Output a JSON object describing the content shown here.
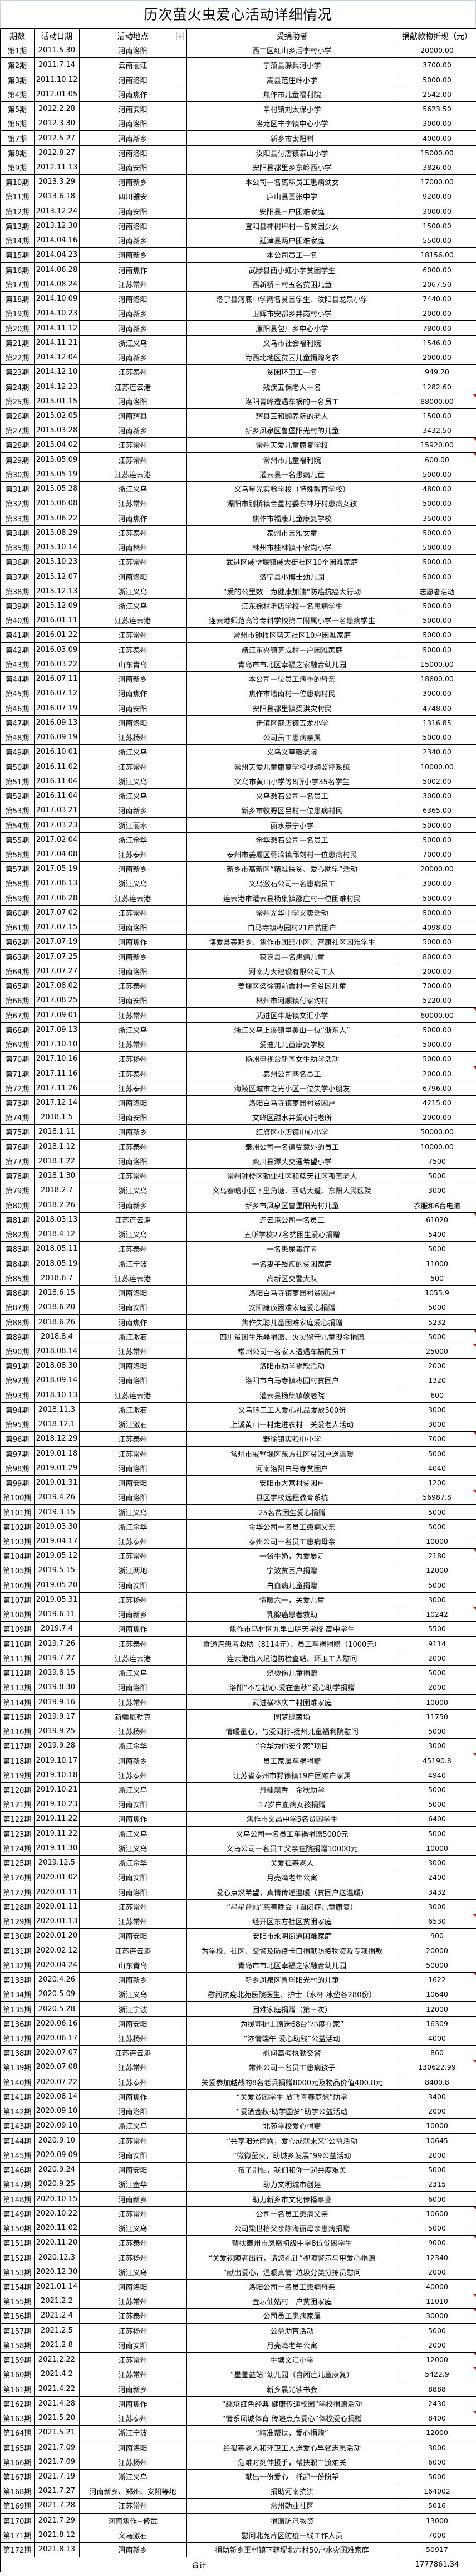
{
  "title": "历次萤火虫爱心活动详细情况",
  "columns": [
    "期数",
    "活动日期",
    "活动地点",
    "受捐助者",
    "捐献款物折现（元）"
  ],
  "filter_icon": "dropdown-filter-icon",
  "colors": {
    "border": "#000000",
    "filter_arrow": "#1fa55a",
    "comment_marker": "#e00000"
  },
  "rows": [
    [
      "第1期",
      "2011.5.30",
      "河南洛阳",
      "西工区红山乡后李村小学",
      "20000.00"
    ],
    [
      "第2期",
      "2011.7.14",
      "云南丽江",
      "宁蒗县躲兵河小学",
      "3700.00"
    ],
    [
      "第3期",
      "2011.10.12",
      "河南洛阳",
      "嵩县范庄岭小学",
      "5000.00"
    ],
    [
      "第4期",
      "2012.01.05",
      "河南焦作",
      "焦作市儿童福利院",
      "2542.00"
    ],
    [
      "第5期",
      "2012.2.28",
      "河南安阳",
      "辛村镇刘太保小学",
      "5623.50"
    ],
    [
      "第6期",
      "2012.3.30",
      "河南洛阳",
      "洛龙区丰李镇中心小学",
      "3000.00"
    ],
    [
      "第7期",
      "2012.5.27",
      "河南新乡",
      "新乡市太阳村",
      "4000.00"
    ],
    [
      "第8期",
      "2012.8.27",
      "河南洛阳",
      "汝阳县付店镇泰山小学",
      "15000.00"
    ],
    [
      "第9期",
      "2012.11.13",
      "河南安阳",
      "安阳县都里乡东岭西小学",
      "3826.00"
    ],
    [
      "第10期",
      "2013.3.29",
      "河南新乡",
      "本公司一名离职员工患病幼女",
      "17000.00"
    ],
    [
      "第11期",
      "2013.6.18",
      "四川雅安",
      "庐山县国张中学",
      "9200.00"
    ],
    [
      "第12期",
      "2013.12.24",
      "河南安阳",
      "安阳县三户困难家庭",
      "3000.00"
    ],
    [
      "第13期",
      "2013.12.30",
      "河南洛阳",
      "宜阳县柿树坪村一名贫困少女",
      "1500.00"
    ],
    [
      "第14期",
      "2014.04.16",
      "河南新乡",
      "延津县两户困难家庭",
      "5500.00"
    ],
    [
      "第15期",
      "2014.04.23",
      "河南新乡",
      "本公司员工一名",
      "18156.00"
    ],
    [
      "第16期",
      "2014.06.28",
      "河南焦作",
      "武陟县西小虹小学贫困学生",
      "6000.00"
    ],
    [
      "第17期",
      "2014.08.24",
      "江苏常州",
      "西新桥三村五名贫困儿童",
      "2067.50"
    ],
    [
      "第18期",
      "2014.10.09",
      "河南洛阳",
      "洛宁县河底中学两名贫困学生、汝阳县龙泉小学",
      "7440.00"
    ],
    [
      "第19期",
      "2014.10.23",
      "河南新乡",
      "卫辉市安都乡井岗村小学",
      "2000.00"
    ],
    [
      "第20期",
      "2014.11.12",
      "河南新乡",
      "原阳县包厂乡中心小学",
      "7800.00"
    ],
    [
      "第21期",
      "2014.11.21",
      "浙江义乌",
      "义乌市社会福利院",
      "1546.00"
    ],
    [
      "第22期",
      "2014.12.04",
      "河南新乡",
      "为西北地区贫困儿童捐赠冬衣",
      "2000.00"
    ],
    [
      "第23期",
      "2014.12.10",
      "江苏泰州",
      "贫困环卫工一名",
      "949.20"
    ],
    [
      "第24期",
      "2014.12.23",
      "江苏连云港",
      "残疾五保老人一名",
      "1282.60"
    ],
    [
      "第25期",
      "2015.01.15",
      "河南洛阳",
      "洛阳青峰遭遇车祸的一名员工",
      "88000.00"
    ],
    [
      "第26期",
      "2015.02.05",
      "河南辉县",
      "辉县三和颐养院的老人",
      "1500.00"
    ],
    [
      "第27期",
      "2015.03.28",
      "河南新乡",
      "新乡凤泉区鲁堡阳光村的儿童",
      "3432.50"
    ],
    [
      "第28期",
      "2015.04.02",
      "江苏常州",
      "常州天爱儿童康复学校",
      "15920.00"
    ],
    [
      "第29期",
      "2015.05.09",
      "江苏常州",
      "常州市儿童福利院",
      "600.00"
    ],
    [
      "第30期",
      "2015.05.19",
      "江苏连云港",
      "灌云县一名患病儿童",
      "5000.00"
    ],
    [
      "第31期",
      "2015.05.28",
      "浙江义乌",
      "义乌星光实验学校（特殊教育学校）",
      "4800.00"
    ],
    [
      "第32期",
      "2015.06.08",
      "江苏常州",
      "溧阳市别桥镇合星村委东神圩村患病女孩",
      "5000.00"
    ],
    [
      "第33期",
      "2015.06.22",
      "河南焦作",
      "焦作市福康儿童康复学校",
      "3500.00"
    ],
    [
      "第34期",
      "2015.08.29",
      "江苏泰州",
      "泰州市困难女童",
      "5000.00"
    ],
    [
      "第35期",
      "2015.10.14",
      "河南林州",
      "林州市桂林镇干家岗小学",
      "5000.00"
    ],
    [
      "第36期",
      "2015.10.23",
      "江苏常州",
      "武进区戚墅堰镇戚大街社区10个困难家庭",
      "5000.00"
    ],
    [
      "第37期",
      "2015.12.07",
      "河南洛阳",
      "洛宁县小博士幼儿园",
      "5000.00"
    ],
    [
      "第38期",
      "2015.12.13",
      "浙江义乌",
      "“爱的公里数　为健康加油”防癌抗癌大行动",
      "志愿者活动"
    ],
    [
      "第39期",
      "2015.12.09",
      "浙江义乌",
      "江东徐村毛店学校一名患病学生",
      "5000.00"
    ],
    [
      "第40期",
      "2016.01.11",
      "江苏连云港",
      "连云港师范高等专科学校第二附属小学一名患病学生",
      "5000.00"
    ],
    [
      "第41期",
      "2016.01.22",
      "江苏常州",
      "常州市钟楼区蓝天社区10户困难家庭",
      "5000.00"
    ],
    [
      "第42期",
      "2016.03.09",
      "江苏泰州",
      "靖江东兴镇克成村一户困难家庭",
      "5000.00"
    ],
    [
      "第43期",
      "2016.03.22",
      "山东青岛",
      "青岛市市北区幸福之家融合幼儿园",
      "15000.00"
    ],
    [
      "第44期",
      "2016.07.11",
      "河南新乡",
      "本公司一位员工病重的母亲",
      "18600.00"
    ],
    [
      "第45期",
      "2016.07.12",
      "河南焦作",
      "焦作市墙南村一位患病村民",
      "3000.00"
    ],
    [
      "第46期",
      "2016.07.19",
      "河南安阳",
      "安阳县都里镇受洪灾村民",
      "4748.00"
    ],
    [
      "第47期",
      "2016.09.13",
      "河南洛阳",
      "伊滨区寇店镇五龙小学",
      "1316.85"
    ],
    [
      "第48期",
      "2016.09.19",
      "江苏扬州",
      "公司员工患病亲属",
      "5000.00"
    ],
    [
      "第49期",
      "2016.10.01",
      "浙江义乌",
      "义乌义亭敬老院",
      "2340.00"
    ],
    [
      "第50期",
      "2016.11.02",
      "江苏常州",
      "常州天爱儿童康复学校视频监控系统",
      "10000.00"
    ],
    [
      "第51期",
      "2016.11.04",
      "浙江义乌",
      "义乌市黄山小学等8所小学35名学生",
      "5002.00"
    ],
    [
      "第52期",
      "2016.11.04",
      "浙江义乌",
      "义乌激石公司一名员工",
      "3000.00"
    ],
    [
      "第53期",
      "2017.03.21",
      "河南新乡",
      "新乡市牧野区吕村一位患病村民",
      "6365.00"
    ],
    [
      "第54期",
      "2017.03.23",
      "浙江丽水",
      "丽水景宁小学",
      "5000.00"
    ],
    [
      "第55期",
      "2017.02.04",
      "浙江金华",
      "金华激石公司一名员工",
      "5000.00"
    ],
    [
      "第56期",
      "2017.04.08",
      "江苏泰州",
      "泰州市姜堰区蒋垛镇邱刘村一位患病村民",
      "7000.00"
    ],
    [
      "第57期",
      "2017.05.19",
      "河南新乡",
      "新乡市高新区“精准扶贫、爱心助学”活动",
      "20000.00"
    ],
    [
      "第58期",
      "2017.06.13",
      "浙江义乌",
      "义乌激石公司一名患病员工",
      "3000.00"
    ],
    [
      "第59期",
      "2017.06.28",
      "江苏连云港",
      "连云港市灌云县杨集镇邵庄村一位困难村民",
      "5000.00"
    ],
    [
      "第60期",
      "2017.07.02",
      "江苏常州",
      "常州光华中学义卖活动",
      "5000.00"
    ],
    [
      "第61期",
      "2017.07.15",
      "河南洛阳",
      "白马寺镇枣园村21户贫困户",
      "4098.00"
    ],
    [
      "第62期",
      "2017.07.19",
      "河南焦作",
      "博爱县寨豁乡、焦作市团结小区、富康社区困难学生",
      "5000.00"
    ],
    [
      "第63期",
      "2017.07.25",
      "河南新乡",
      "获嘉县一名患病儿童",
      "8000.00"
    ],
    [
      "第64期",
      "2017.07.27",
      "河南洛阳",
      "河南力大建设有限公司工人",
      "2000.00"
    ],
    [
      "第65期",
      "2017.08.02",
      "江苏泰州",
      "姜堰区梁徐镇前舍村一名贫困儿童",
      "7000.00"
    ],
    [
      "第66期",
      "2017.08.25",
      "河南安阳",
      "林州市河顺镇付家沟村",
      "5220.00"
    ],
    [
      "第67期",
      "2017.09.01",
      "江苏常州",
      "武进区牛塘镇文汇小学",
      "60000.00"
    ],
    [
      "第68期",
      "2017.09.13",
      "浙江义乌",
      "浙江义乌上溪镇里美山一位“浙东人”",
      "5000.00"
    ],
    [
      "第69期",
      "2017.10.10",
      "江苏常州",
      "爱迪儿儿童康复学校",
      "5000.00"
    ],
    [
      "第70期",
      "2017.10.16",
      "江苏扬州",
      "扬州电视台新闻女生助学活动",
      "5000.00"
    ],
    [
      "第71期",
      "2017.11.16",
      "江苏泰州",
      "泰州公司两名员工",
      "2000.00"
    ],
    [
      "第72期",
      "2017.11.26",
      "江苏泰州",
      "海陵区城市之光小区一位失学小朋友",
      "6796.00"
    ],
    [
      "第73期",
      "2017.12.14",
      "河南洛阳",
      "洛阳白马寺镇枣园村贫困户",
      "4215.00"
    ],
    [
      "第74期",
      "2018.1.5",
      "河南安阳",
      "文峰区甜水井爱心托老所",
      "2000.00"
    ],
    [
      "第75期",
      "2018.1.11",
      "河南新乡",
      "红旗区小店镇中心小学",
      "50000.00"
    ],
    [
      "第76期",
      "2018.1.12",
      "江苏泰州",
      "泰州公司一名遭受意外的员工",
      "10000.00"
    ],
    [
      "第77期",
      "2018.1.22",
      "河南洛阳",
      "栾川县潭头交通希望小学",
      "7500"
    ],
    [
      "第78期",
      "2018.1.30",
      "江苏常州",
      "常州钟楼区勤业社区和蓝天社区孤苦老人",
      "5000"
    ],
    [
      "第79期",
      "2018.2.7",
      "浙江义乌",
      "义乌春晗小区下里角塘、西站大道、东阳人民医院",
      "3000"
    ],
    [
      "第80期",
      "2018.2.26",
      "河南新乡",
      "新乡市凤泉区鲁堡阳光村儿童",
      "衣服和6台电脑"
    ],
    [
      "第81期",
      "2018.03.13",
      "江苏连云港",
      "连云港公司一名员工",
      "61020"
    ],
    [
      "第82期",
      "2018.4.12",
      "浙江义乌",
      "五所学校27名贫困生爱心捐赠",
      "5400"
    ],
    [
      "第83期",
      "2018.05.11",
      "江苏泰州",
      "一名患尿毒症者",
      "5000"
    ],
    [
      "第84期",
      "2018.05.19",
      "浙江宁波",
      "一名妻子残疾的贫困家庭",
      "11000"
    ],
    [
      "第85期",
      "2018.6.7",
      "江苏连云港",
      "高新区交警大队",
      "500"
    ],
    [
      "第86期",
      "2018.6.15",
      "河南洛阳",
      "洛阳白马寺镇枣园村贫困户",
      "1055.9"
    ],
    [
      "第87期",
      "2018.6.20",
      "河南安阳",
      "安阳瘫痪困难家庭爱心捐赠",
      "5000"
    ],
    [
      "第88期",
      "2018.6.26",
      "河南焦作",
      "焦作失聪儿童困难家庭爱心捐赠",
      "5232"
    ],
    [
      "第89期",
      "2018.8.4",
      "浙江激石",
      "四川贫困生乐器捐赠、火灾留守儿童现金捐赠",
      "5000"
    ],
    [
      "第90期",
      "2018.08.14",
      "江苏常州",
      "常州公司一名家人遭遇车祸的员工",
      "25000"
    ],
    [
      "第91期",
      "2018.08.30",
      "河南洛阳",
      "洛阳市助学捐款活动",
      "2000"
    ],
    [
      "第92期",
      "2018.09.14",
      "河南洛阳",
      "洛阳市白马寺镇枣园村贫困户",
      "1320"
    ],
    [
      "第93期",
      "2018.10.13",
      "江苏连云港",
      "灌云县杨集镇敬老院",
      "600"
    ],
    [
      "第94期",
      "2018.11.3",
      "浙江激石",
      "义乌环卫工人爱心礼品发放500份",
      "3000"
    ],
    [
      "第95期",
      "2018.12.1",
      "浙江激石",
      "上溪黄山一村走进农村　关爱老人活动",
      "3000"
    ],
    [
      "第96期",
      "2018.12.29",
      "江苏泰州",
      "野徐镇实验中小学",
      "7000"
    ],
    [
      "第97期",
      "2019.01.18",
      "江苏常州",
      "常州市戚墅堰区东方社区贫困户送温暖",
      "5000"
    ],
    [
      "第98期",
      "2019.01.29",
      "河南洛阳",
      "河南洛阳白马寺贫困户",
      "4040"
    ],
    [
      "第99期",
      "2019.01.31",
      "河南安阳",
      "安阳市大营村贫困户",
      "1200"
    ],
    [
      "第100期",
      "2019.4.26",
      "河南洛阳",
      "县区学校远程教育系统",
      "56987.8"
    ],
    [
      "第101期",
      "2019.3.15",
      "浙江义乌",
      "25名贫困生爱心捐赠",
      "5000"
    ],
    [
      "第102期",
      "2019.03.30",
      "浙江金华",
      "金华公司一名员工患病父亲",
      "5000"
    ],
    [
      "第103期",
      "2019.04.17",
      "江苏泰州",
      "泰州公司一名员工患病母亲",
      "10000"
    ],
    [
      "第104期",
      "2019.05.12",
      "江苏常州",
      "一袋牛奶，为爱暴走",
      "2180"
    ],
    [
      "第105期",
      "2019.5.15",
      "浙江两地",
      "宁波贫困户捐赠",
      "12000"
    ],
    [
      "第106期",
      "2019.05.20",
      "河南安阳",
      "白血病儿童捐赠",
      "5000"
    ],
    [
      "第107期",
      "2019.05.31",
      "江苏扬州",
      "情暖六一，关爱儿童",
      "3000"
    ],
    [
      "第108期",
      "2019.6.11",
      "河南新乡",
      "乳腺癌患者救助",
      "10242"
    ],
    [
      "第109期",
      "2019.7.4",
      "河南焦作",
      "焦作市马村区九里山明天学校 高中学生",
      "5500"
    ],
    [
      "第110期",
      "2019.7.26",
      "江苏泰州",
      "食道癌患者救助（8114元）、员工车祸捐赠（1000元）",
      "9114"
    ],
    [
      "第111期",
      "2019.7.27",
      "江苏连云港",
      "连云港出入境边防检查站、环卫工人慰问",
      "2000"
    ],
    [
      "第112期",
      "2019.8.15",
      "浙江义乌",
      "烧烫伤儿童捐赠",
      "5000"
    ],
    [
      "第113期",
      "2019.8.30",
      "河南洛阳",
      "洛阳“不忘初心.爱在金秋”爱心助学捐赠",
      "2000"
    ],
    [
      "第114期",
      "2019.9.16",
      "江苏常州",
      "武进横林庆丰村困难家庭",
      "10000"
    ],
    [
      "第115期",
      "2019.9.17",
      "新疆尼勒克",
      "圆梦绿茵场",
      "11750"
    ],
    [
      "第116期",
      "2019.9.25",
      "江苏扬州",
      "情暖童心，与爱同行-扬州儿童福利院慰问",
      "5000"
    ],
    [
      "第117期",
      "2019.9.28",
      "浙江金华",
      "“金华为你安个家”项目",
      "3000"
    ],
    [
      "第118期",
      "2019.10.17",
      "河南新乡",
      "员工家属车祸捐赠",
      "45190.8"
    ],
    [
      "第119期",
      "2019.10.18",
      "江苏泰州",
      "江苏省泰州市野徐镇19户困难户家属",
      "4940"
    ],
    [
      "第120期",
      "2019.10.21",
      "浙江义乌",
      "丹桂飘香　金秋助学",
      "5000"
    ],
    [
      "第121期",
      "2019.10.23",
      "河南安阳",
      "17岁白血病女孩捐赠",
      "5000"
    ],
    [
      "第122期",
      "2019.11.22",
      "河南焦作",
      "焦作市文昌中学5名贫困学生",
      "6400"
    ],
    [
      "第123期",
      "2019.11.22",
      "浙江义乌",
      "义乌公司一名员工车祸捐赠5000元",
      "5000"
    ],
    [
      "第124期",
      "2019.11.30",
      "浙江义乌",
      "义乌公司一名员工父亲住院捐赠10000元",
      "10000"
    ],
    [
      "第125期",
      "2019.12.5",
      "浙江金华",
      "关爱孤寡老人",
      "3000"
    ],
    [
      "第126期",
      "2020.01.02",
      "河南安阳",
      "月亮湾老年公寓",
      "2400"
    ],
    [
      "第127期",
      "2020.01.11",
      "河南洛阳",
      "爱心点燃希望，真情传递温暖（贫困户送温暖）",
      "3432"
    ],
    [
      "第128期",
      "2020.01.11",
      "江苏常州",
      "“星星益站”慈善晚会（自闭症儿童康复）",
      "3000"
    ],
    [
      "第129期",
      "2020.01.13",
      "江苏常州",
      "经开区东方社区贫困家庭",
      "6530"
    ],
    [
      "第130期",
      "2020.01.20",
      "河南安阳",
      "安阳市永明街道困难家庭",
      "900"
    ],
    [
      "第131期",
      "2020.02.12",
      "江苏连云港",
      "为学校、社区、交警及防疫卡口捐献防疫物资及专项捐款",
      "20000"
    ],
    [
      "第132期",
      "2020.04.24",
      "山东青岛",
      "青岛市市北区幸福之家融合幼儿园",
      "50000"
    ],
    [
      "第133期",
      "2020.4.26",
      "河南新乡",
      "新乡凤泉区鲁堡阳光村的儿童",
      "1622"
    ],
    [
      "第134期",
      "2020.5.09",
      "浙江义乌",
      "慰问抗疫北苑医院医生、护士（水杯 冰垫各280份）",
      "10640"
    ],
    [
      "第135期",
      "2020.5.28",
      "浙江宁波",
      "困难家庭捐赠（第三次）",
      "12000"
    ],
    [
      "第136期",
      "2020.06.16",
      "河南安阳",
      "为援鄂护士赠送68台“小度在家”",
      "16309"
    ],
    [
      "第137期",
      "2020.06.17",
      "江苏扬州",
      "“浓情端午 爱心助残”公益活动",
      "4000"
    ],
    [
      "第138期",
      "2020.07.07",
      "江苏连云港",
      "慰问高考执勤交警",
      "860"
    ],
    [
      "第139期",
      "2020.07.08",
      "江苏常州",
      "常州公司一名员工患病孩子",
      "130622.99"
    ],
    [
      "第140期",
      "2020.07.22",
      "江苏泰州",
      "关爱参加越战的8名老兵捐赠8000元及物品价值400.8元",
      "8400.8"
    ],
    [
      "第141期",
      "2020.08.14",
      "河南焦作",
      "“关爱贫困学生 放飞青春梦想”助学",
      "3400"
    ],
    [
      "第142期",
      "2020.09.10",
      "河南洛阳",
      "“爱洒金秋·助学圆梦”助学公益活动",
      "2000"
    ],
    [
      "第143期",
      "2020.09.10",
      "浙江义乌",
      "北苑学校爱心捐赠",
      "10000"
    ],
    [
      "第144期",
      "2020.9.10",
      "江苏常州",
      "“共享阳光雨露，爱心成就未来”公益活动",
      "10645"
    ],
    [
      "第145期",
      "2020.09.09",
      "河南安阳",
      "“微微萤火，助城乡发展”99公益活动",
      "2000"
    ],
    [
      "第146期",
      "2020.9.24",
      "河南安阳",
      "孩子别怕，我们和你一起共度难关",
      "5000"
    ],
    [
      "第147期",
      "2020.9.25",
      "浙江金华",
      "助力文明城市创建",
      "2315"
    ],
    [
      "第148期",
      "2020.10.15",
      "河南新乡",
      "助力新乡市文化传播事业",
      "6000"
    ],
    [
      "第149期",
      "2020.10.22",
      "江苏常州",
      "公司一名员工患病父亲",
      "10600"
    ],
    [
      "第150期",
      "2020.11.02",
      "浙江义乌",
      "公司梁世格父亲陈海丽母亲患病捐赠",
      "5000"
    ],
    [
      "第151期",
      "2020.11.20",
      "江苏泰州",
      "帮扶泰州市凤凰初级中学8位贫困学生",
      "9000"
    ],
    [
      "第152期",
      "2020.12.3",
      "江苏扬州",
      "“关爱视障者出行，请您礼让”视障警示马甲爱心捐赠",
      "12340"
    ],
    [
      "第153期",
      "2020.12.30",
      "浙江义乌",
      "“献出爱心，温暖真情”垃圾分类分拣员慰问",
      "2000"
    ],
    [
      "第154期",
      "2021.01.14",
      "河南洛阳",
      "洛阳公司一名员工患病母亲",
      "40000"
    ],
    [
      "第155期",
      "2021.2.2",
      "江苏常州",
      "金坛仙姑村十户贫困家庭",
      "11010"
    ],
    [
      "第156期",
      "2021.2.4",
      "江苏泰州",
      "公司员工患病家属",
      "30000"
    ],
    [
      "第157期",
      "2021.2.5",
      "江苏扬州",
      "公益助盲活动",
      "5000"
    ],
    [
      "第158期",
      "2021.2.8",
      "河南安阳",
      "月亮湾老年公寓",
      "2000"
    ],
    [
      "第159期",
      "2021.2.22",
      "江苏常州",
      "牛塘文汇小学",
      "12000"
    ],
    [
      "第160期",
      "2021.4.2",
      "江苏常州",
      "“星星益站”幼儿园（自闭症儿童康复）",
      "5422.9"
    ],
    [
      "第161期",
      "2021.4.22",
      "河南新乡",
      "新乡晨光读书会",
      "8888"
    ],
    [
      "第162期",
      "2021.4.28",
      "河南焦作",
      "“继承红色经典 健康传递校园”学校捐赠活动",
      "2430"
    ],
    [
      "第163期",
      "2021.5.20",
      "江苏泰州",
      "“情系凤城体育 传递点点爱心”体校爱心捐赠",
      "8400"
    ],
    [
      "第164期",
      "2021.5.21",
      "浙江宁波",
      "“精准帮扶，爱心捐赠”",
      "12000"
    ],
    [
      "第165期",
      "2021.7.09",
      "河南洛阳",
      "给孤寡老人和环卫工人送爱心早餐志愿活动",
      "3000"
    ],
    [
      "第166期",
      "2021.7.09",
      "江苏扬州",
      "危难时刻伸援手，帮扶职工渡难关",
      "6000"
    ],
    [
      "第167期",
      "2021.7.19",
      "浙江义乌",
      "献出一份爱心　托起一份盼望",
      "5000"
    ],
    [
      "第168期",
      "2021.7.27",
      "河南新乡、郑州、安阳等地",
      "捐助河南抗洪",
      "164002"
    ],
    [
      "第169期",
      "2021.7.28",
      "江苏常州",
      "常州勤业社区",
      "5016"
    ],
    [
      "第170期",
      "2021.7.29",
      "河南焦作+修武",
      "捐赠防汛物资",
      "13000"
    ],
    [
      "第171期",
      "2021.8.12",
      "义乌激石",
      "慰问北苑片区防疫一线工作人员",
      "7000"
    ],
    [
      "第172期",
      "2021.8.13",
      "河南新乡",
      "捐助新乡王村镇下辖堤北六村50户水灾困难家庭",
      "50917"
    ]
  ],
  "commented_periods": [
    "第25期",
    "第28期",
    "第29期",
    "第67期",
    "第71期",
    "第81期",
    "第89期",
    "第90期",
    "第96期",
    "第100期",
    "第104期",
    "第108期",
    "第118期",
    "第129期",
    "第133期",
    "第139期",
    "第149期",
    "第151期",
    "第155期",
    "第156期",
    "第159期",
    "第160期",
    "第163期"
  ],
  "total": {
    "label": "合计",
    "value": "1777861.34"
  }
}
